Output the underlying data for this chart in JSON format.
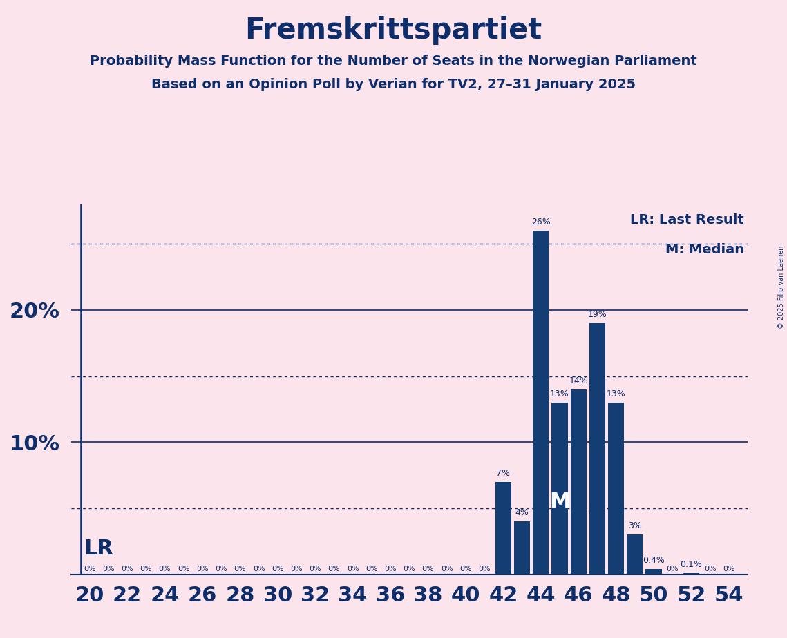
{
  "title": "Fremskrittspartiet",
  "subtitle1": "Probability Mass Function for the Number of Seats in the Norwegian Parliament",
  "subtitle2": "Based on an Opinion Poll by Verian for TV2, 27–31 January 2025",
  "copyright": "© 2025 Filip van Laenen",
  "background_color": "#fce4ec",
  "bar_color": "#143d73",
  "text_color": "#0d2d6b",
  "seats": [
    20,
    21,
    22,
    23,
    24,
    25,
    26,
    27,
    28,
    29,
    30,
    31,
    32,
    33,
    34,
    35,
    36,
    37,
    38,
    39,
    40,
    41,
    42,
    43,
    44,
    45,
    46,
    47,
    48,
    49,
    50,
    51,
    52,
    53,
    54
  ],
  "values": [
    0.0,
    0.0,
    0.0,
    0.0,
    0.0,
    0.0,
    0.0,
    0.0,
    0.0,
    0.0,
    0.0,
    0.0,
    0.0,
    0.0,
    0.0,
    0.0,
    0.0,
    0.0,
    0.0,
    0.0,
    0.0,
    0.0,
    7.0,
    4.0,
    26.0,
    13.0,
    14.0,
    19.0,
    13.0,
    3.0,
    0.4,
    0.0,
    0.1,
    0.0,
    0.0
  ],
  "bar_labels": [
    "0%",
    "0%",
    "0%",
    "0%",
    "0%",
    "0%",
    "0%",
    "0%",
    "0%",
    "0%",
    "0%",
    "0%",
    "0%",
    "0%",
    "0%",
    "0%",
    "0%",
    "0%",
    "0%",
    "0%",
    "0%",
    "0%",
    "7%",
    "4%",
    "26%",
    "13%",
    "14%",
    "19%",
    "13%",
    "3%",
    "0.4%",
    "0%",
    "0.1%",
    "0%",
    "0%"
  ],
  "solid_yticks": [
    10,
    20
  ],
  "dotted_yticks": [
    5,
    15,
    25
  ],
  "median_seat": 45,
  "xlim_left": 19.0,
  "xlim_right": 55.0,
  "ylim_top": 28.0,
  "bar_label_fontsize": 9,
  "ytick_fontsize": 22,
  "xtick_fontsize": 22,
  "legend_fontsize": 14,
  "title_fontsize": 30,
  "subtitle_fontsize": 14,
  "lr_fontsize": 22,
  "m_fontsize": 22
}
